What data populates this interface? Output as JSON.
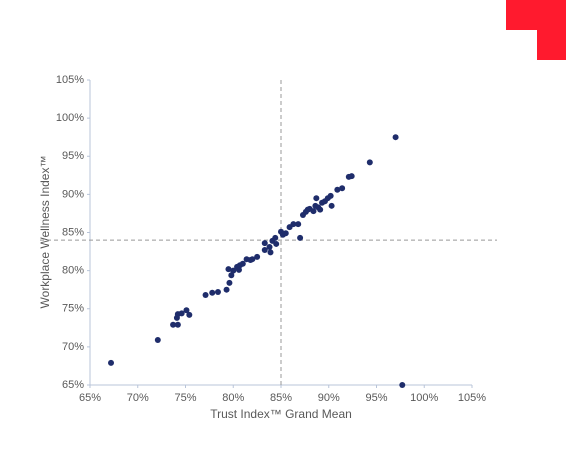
{
  "chart_data": {
    "type": "scatter",
    "x_label": "Trust Index™ Grand Mean",
    "y_label": "Workplace Wellness Index™",
    "x": [
      67.2,
      72.1,
      73.7,
      74.2,
      74.1,
      74.2,
      74.6,
      75.1,
      75.4,
      77.1,
      77.8,
      78.4,
      79.3,
      79.6,
      79.5,
      79.8,
      80.0,
      80.4,
      80.6,
      80.7,
      81.0,
      81.4,
      81.8,
      82.0,
      82.5,
      83.3,
      83.3,
      83.8,
      83.9,
      84.1,
      84.4,
      84.5,
      85.0,
      85.2,
      85.5,
      85.9,
      86.3,
      86.8,
      87.0,
      87.3,
      87.6,
      87.8,
      88.0,
      88.4,
      88.7,
      88.6,
      88.9,
      89.1,
      89.3,
      89.6,
      89.9,
      90.2,
      90.3,
      90.9,
      91.4,
      92.1,
      92.4,
      94.3,
      97.0,
      97.7
    ],
    "values": [
      67.9,
      70.9,
      72.9,
      72.9,
      73.8,
      74.3,
      74.4,
      74.8,
      74.2,
      76.8,
      77.1,
      77.2,
      77.5,
      78.4,
      80.2,
      79.4,
      80.0,
      80.5,
      80.1,
      80.7,
      80.9,
      81.5,
      81.4,
      81.5,
      81.8,
      83.6,
      82.7,
      83.1,
      82.4,
      83.9,
      84.3,
      83.5,
      85.1,
      84.7,
      84.9,
      85.7,
      86.1,
      86.1,
      84.3,
      87.3,
      87.7,
      88.0,
      88.1,
      87.8,
      89.5,
      88.5,
      88.3,
      88.0,
      88.9,
      89.1,
      89.5,
      89.8,
      88.5,
      90.6,
      90.8,
      92.3,
      92.4,
      94.2,
      97.5,
      65.0
    ],
    "color": "#1f2d6b",
    "xlim": [
      65,
      105
    ],
    "ylim": [
      65,
      105
    ],
    "xticks": [
      {
        "value": 65,
        "label": "65%"
      },
      {
        "value": 70,
        "label": "70%"
      },
      {
        "value": 75,
        "label": "75%"
      },
      {
        "value": 80,
        "label": "80%"
      },
      {
        "value": 85,
        "label": "85%"
      },
      {
        "value": 90,
        "label": "90%"
      },
      {
        "value": 95,
        "label": "95%"
      },
      {
        "value": 100,
        "label": "100%"
      },
      {
        "value": 105,
        "label": "105%"
      }
    ],
    "yticks": [
      {
        "value": 65,
        "label": "65%"
      },
      {
        "value": 70,
        "label": "70%"
      },
      {
        "value": 75,
        "label": "75%"
      },
      {
        "value": 80,
        "label": "80%"
      },
      {
        "value": 85,
        "label": "85%"
      },
      {
        "value": 90,
        "label": "90%"
      },
      {
        "value": 95,
        "label": "95%"
      },
      {
        "value": 100,
        "label": "100%"
      },
      {
        "value": 105,
        "label": "105%"
      }
    ],
    "reference_lines": {
      "x": 85,
      "y": 84
    }
  }
}
